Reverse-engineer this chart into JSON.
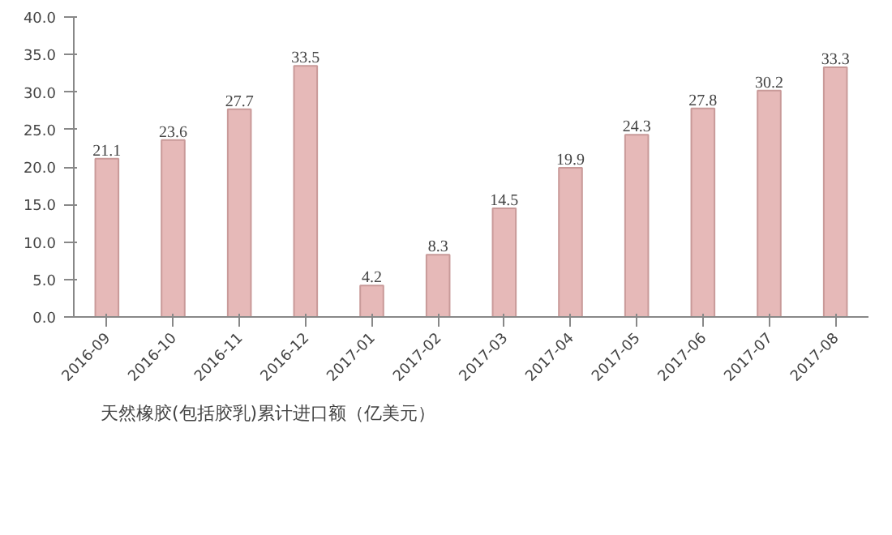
{
  "chart_data": {
    "type": "bar",
    "categories": [
      "2016-09",
      "2016-10",
      "2016-11",
      "2016-12",
      "2017-01",
      "2017-02",
      "2017-03",
      "2017-04",
      "2017-05",
      "2017-06",
      "2017-07",
      "2017-08"
    ],
    "series": [
      {
        "name": "天然橡胶(包括胶乳)累计进口额（亿美元）",
        "color": "#e6b9b8",
        "values": [
          21.1,
          23.6,
          27.7,
          33.5,
          4.2,
          8.3,
          14.5,
          19.9,
          24.3,
          27.8,
          30.2,
          33.3
        ]
      }
    ],
    "ylim": [
      0,
      40
    ],
    "yticks": [
      {
        "value": 0,
        "label": "0.0"
      },
      {
        "value": 5,
        "label": "5.0"
      },
      {
        "value": 10,
        "label": "10.0"
      },
      {
        "value": 15,
        "label": "15.0"
      },
      {
        "value": 20,
        "label": "20.0"
      },
      {
        "value": 25,
        "label": "25.0"
      },
      {
        "value": 30,
        "label": "30.0"
      },
      {
        "value": 35,
        "label": "35.0"
      },
      {
        "value": 40,
        "label": "40.0"
      }
    ],
    "data_labels": true,
    "grid": false,
    "legend": "bottom left"
  }
}
